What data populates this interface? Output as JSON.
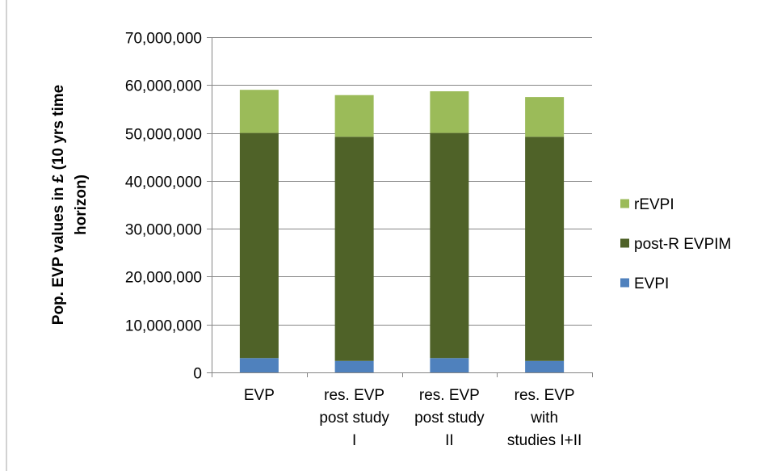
{
  "chart_data": {
    "type": "bar",
    "stacked": true,
    "title": "",
    "xlabel": "",
    "ylabel": "Pop. EVP values in £ (10 yrs time horizon)",
    "ylabel_lines": [
      "Pop. EVP values in £ (10 yrs time",
      "horizon)"
    ],
    "ylim": [
      0,
      70000000
    ],
    "yticks": [
      0,
      10000000,
      20000000,
      30000000,
      40000000,
      50000000,
      60000000,
      70000000
    ],
    "ytick_labels": [
      "0",
      "10,000,000",
      "20,000,000",
      "30,000,000",
      "40,000,000",
      "50,000,000",
      "60,000,000",
      "70,000,000"
    ],
    "grid": true,
    "legend_position": "right",
    "categories": [
      "EVP",
      "res. EVP post study I",
      "res. EVP post study II",
      "res. EVP with studies I+II"
    ],
    "category_lines": [
      [
        "EVP"
      ],
      [
        "res. EVP",
        "post study",
        "I"
      ],
      [
        "res. EVP",
        "post study",
        "II"
      ],
      [
        "res. EVP",
        "with",
        "studies I+II"
      ]
    ],
    "series": [
      {
        "name": "EVPI",
        "color": "#4f81bd",
        "values": [
          3000000,
          2400000,
          3000000,
          2400000
        ]
      },
      {
        "name": "post-R EVPIM",
        "color": "#4f6228",
        "values": [
          47000000,
          46800000,
          47000000,
          46800000
        ]
      },
      {
        "name": "rEVPI",
        "color": "#9bbb59",
        "values": [
          9000000,
          8700000,
          8700000,
          8300000
        ]
      }
    ],
    "legend_order": [
      "rEVPI",
      "post-R EVPIM",
      "EVPI"
    ]
  }
}
